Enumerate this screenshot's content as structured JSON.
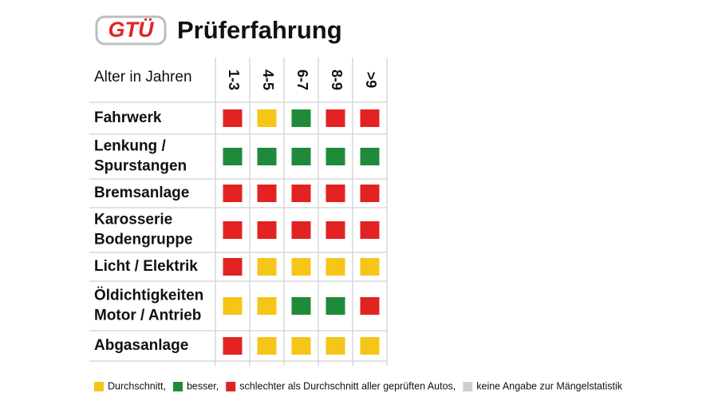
{
  "header": {
    "logo": "GTÜ",
    "title": "Prüferfahrung"
  },
  "table": {
    "corner": "Alter in Jahren",
    "columns": [
      "1-3",
      "4-5",
      "6-7",
      "8-9",
      ">9"
    ],
    "rows": [
      {
        "label": [
          "Fahrwerk"
        ],
        "cells": [
          "r",
          "y",
          "g",
          "r",
          "r"
        ]
      },
      {
        "label": [
          "Lenkung /",
          "Spurstangen"
        ],
        "cells": [
          "g",
          "g",
          "g",
          "g",
          "g"
        ]
      },
      {
        "label": [
          "Bremsanlage"
        ],
        "cells": [
          "r",
          "r",
          "r",
          "r",
          "r"
        ]
      },
      {
        "label": [
          "Karosserie",
          "Bodengruppe"
        ],
        "cells": [
          "r",
          "r",
          "r",
          "r",
          "r"
        ]
      },
      {
        "label": [
          "Licht / Elektrik"
        ],
        "cells": [
          "r",
          "y",
          "y",
          "y",
          "y"
        ]
      },
      {
        "label": [
          "Öldichtigkeiten",
          "Motor / Antrieb"
        ],
        "cells": [
          "y",
          "y",
          "g",
          "g",
          "r"
        ]
      },
      {
        "label": [
          "Abgasanlage"
        ],
        "cells": [
          "r",
          "y",
          "y",
          "y",
          "y"
        ]
      }
    ]
  },
  "legend": [
    {
      "code": "y",
      "color": "#f5c518",
      "label": "Durchschnitt,"
    },
    {
      "code": "g",
      "color": "#1f8a3a",
      "label": "besser,"
    },
    {
      "code": "r",
      "color": "#e32222",
      "label": "schlechter als Durchschnitt aller geprüften Autos,"
    },
    {
      "code": "n",
      "color": "#cfcfcf",
      "label": "keine Angabe zur Mängelstatistik"
    }
  ]
}
